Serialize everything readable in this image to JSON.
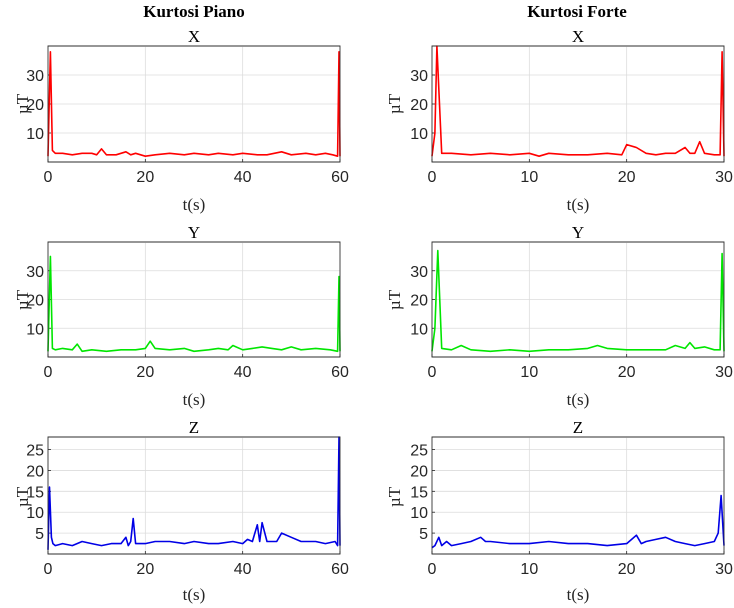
{
  "column_titles": [
    "Kurtosi Piano",
    "Kurtosi Forte"
  ],
  "chart_data": [
    {
      "type": "line",
      "column": 0,
      "row": 0,
      "title": "X",
      "xlabel": "t(s)",
      "ylabel": "µT",
      "xlim": [
        0,
        60
      ],
      "ylim": [
        0,
        40
      ],
      "xticks": [
        0,
        20,
        40,
        60
      ],
      "yticks": [
        10,
        20,
        30
      ],
      "grid": true,
      "color": "#ff0000",
      "x": [
        0,
        0.5,
        0.9,
        1.5,
        3,
        5,
        7,
        9,
        10,
        11,
        12,
        14,
        16,
        17,
        18,
        20,
        22,
        25,
        28,
        30,
        33,
        35,
        38,
        40,
        43,
        45,
        48,
        50,
        53,
        55,
        57,
        58.5,
        59.5,
        59.8,
        60
      ],
      "values": [
        2,
        38,
        4,
        3,
        3,
        2.5,
        3,
        3,
        2.5,
        4.5,
        2.5,
        2.5,
        3.5,
        2.5,
        3,
        2,
        2.5,
        3,
        2.5,
        3,
        2.5,
        3,
        2.5,
        3,
        2.5,
        2.5,
        3.5,
        2.5,
        3,
        2.5,
        3,
        2.5,
        2,
        38,
        2
      ]
    },
    {
      "type": "line",
      "column": 1,
      "row": 0,
      "title": "X",
      "xlabel": "t(s)",
      "ylabel": "µT",
      "xlim": [
        0,
        30
      ],
      "ylim": [
        0,
        40
      ],
      "xticks": [
        0,
        10,
        20,
        30
      ],
      "yticks": [
        10,
        20,
        30
      ],
      "grid": true,
      "color": "#ff0000",
      "x": [
        0,
        0.3,
        0.5,
        1,
        2,
        4,
        6,
        8,
        10,
        11,
        12,
        14,
        16,
        18,
        19.5,
        20,
        21,
        22,
        23,
        24,
        25,
        26,
        26.5,
        27,
        27.5,
        28,
        29,
        29.6,
        29.8,
        30
      ],
      "values": [
        2,
        10,
        40,
        3,
        3,
        2.5,
        3,
        2.5,
        3,
        2,
        3,
        2.5,
        2.5,
        3,
        2.5,
        6,
        5,
        3,
        2.5,
        3,
        3,
        5,
        3,
        3,
        7,
        3,
        2.5,
        2.5,
        38,
        2
      ]
    },
    {
      "type": "line",
      "column": 0,
      "row": 1,
      "title": "Y",
      "xlabel": "t(s)",
      "ylabel": "µT",
      "xlim": [
        0,
        60
      ],
      "ylim": [
        0,
        40
      ],
      "xticks": [
        0,
        20,
        40,
        60
      ],
      "yticks": [
        10,
        20,
        30
      ],
      "grid": true,
      "color": "#00e600",
      "x": [
        0,
        0.5,
        0.9,
        1.5,
        3,
        5,
        6,
        7,
        9,
        12,
        15,
        18,
        20,
        21,
        22,
        25,
        28,
        30,
        33,
        35,
        37,
        38,
        40,
        42,
        44,
        46,
        48,
        50,
        52,
        55,
        58,
        59.5,
        59.8,
        60
      ],
      "values": [
        2,
        35,
        3,
        2.5,
        3,
        2.5,
        4.5,
        2,
        2.5,
        2,
        2.5,
        2.5,
        3,
        5.5,
        3,
        2.5,
        3,
        2,
        2.5,
        3,
        2.5,
        4,
        2.5,
        3,
        3.5,
        3,
        2.5,
        3.5,
        2.5,
        3,
        2.5,
        2,
        28,
        2
      ]
    },
    {
      "type": "line",
      "column": 1,
      "row": 1,
      "title": "Y",
      "xlabel": "t(s)",
      "ylabel": "µT",
      "xlim": [
        0,
        30
      ],
      "ylim": [
        0,
        40
      ],
      "xticks": [
        0,
        10,
        20,
        30
      ],
      "yticks": [
        10,
        20,
        30
      ],
      "grid": true,
      "color": "#00e600",
      "x": [
        0,
        0.3,
        0.6,
        1,
        2,
        3,
        4,
        6,
        8,
        10,
        12,
        14,
        16,
        17,
        18,
        20,
        22,
        24,
        25,
        26,
        26.5,
        27,
        28,
        29,
        29.6,
        29.8,
        30
      ],
      "values": [
        2,
        10,
        37,
        3,
        2.5,
        4,
        2.5,
        2,
        2.5,
        2,
        2.5,
        2.5,
        3,
        4,
        3,
        2.5,
        2.5,
        2.5,
        4,
        3,
        5,
        3,
        3.5,
        2.5,
        2.5,
        36,
        2
      ]
    },
    {
      "type": "line",
      "column": 0,
      "row": 2,
      "title": "Z",
      "xlabel": "t(s)",
      "ylabel": "µT",
      "xlim": [
        0,
        60
      ],
      "ylim": [
        0,
        28
      ],
      "xticks": [
        0,
        20,
        40,
        60
      ],
      "yticks": [
        5,
        10,
        15,
        20,
        25
      ],
      "grid": true,
      "color": "#0000e6",
      "x": [
        0,
        0.3,
        0.7,
        1,
        1.5,
        3,
        5,
        7,
        9,
        11,
        13,
        15,
        16,
        16.5,
        17,
        17.5,
        18,
        20,
        22,
        25,
        28,
        30,
        33,
        35,
        38,
        40,
        41,
        42,
        43,
        43.5,
        44,
        45,
        47,
        48,
        50,
        52,
        55,
        57,
        59,
        59.5,
        59.8,
        60
      ],
      "values": [
        1,
        16,
        4,
        2.5,
        2,
        2.5,
        2,
        3,
        2.5,
        2,
        2.5,
        2.5,
        4,
        2,
        3,
        8.5,
        2.5,
        2.5,
        3,
        3,
        2.5,
        3,
        2.5,
        2.5,
        3,
        2.5,
        3.5,
        3,
        7,
        3,
        7.5,
        3,
        3,
        5,
        4,
        3,
        3,
        2.5,
        3,
        2,
        28,
        2
      ]
    },
    {
      "type": "line",
      "column": 1,
      "row": 2,
      "title": "Z",
      "xlabel": "t(s)",
      "ylabel": "µT",
      "xlim": [
        0,
        30
      ],
      "ylim": [
        0,
        28
      ],
      "xticks": [
        0,
        10,
        20,
        30
      ],
      "yticks": [
        5,
        10,
        15,
        20,
        25
      ],
      "grid": true,
      "color": "#0000e6",
      "x": [
        0,
        0.3,
        0.7,
        1,
        1.5,
        2,
        3,
        4,
        5,
        5.5,
        6,
        8,
        10,
        12,
        14,
        16,
        18,
        20,
        21,
        21.5,
        22,
        23,
        24,
        25,
        26,
        27,
        28,
        29,
        29.4,
        29.7,
        30
      ],
      "values": [
        1.5,
        2,
        4,
        2,
        3,
        2,
        2.5,
        3,
        4,
        3,
        3,
        2.5,
        2.5,
        3,
        2.5,
        2.5,
        2,
        2.5,
        4.5,
        2.5,
        3,
        3.5,
        4,
        3,
        2.5,
        2,
        2.5,
        3,
        5,
        14,
        2
      ]
    }
  ]
}
